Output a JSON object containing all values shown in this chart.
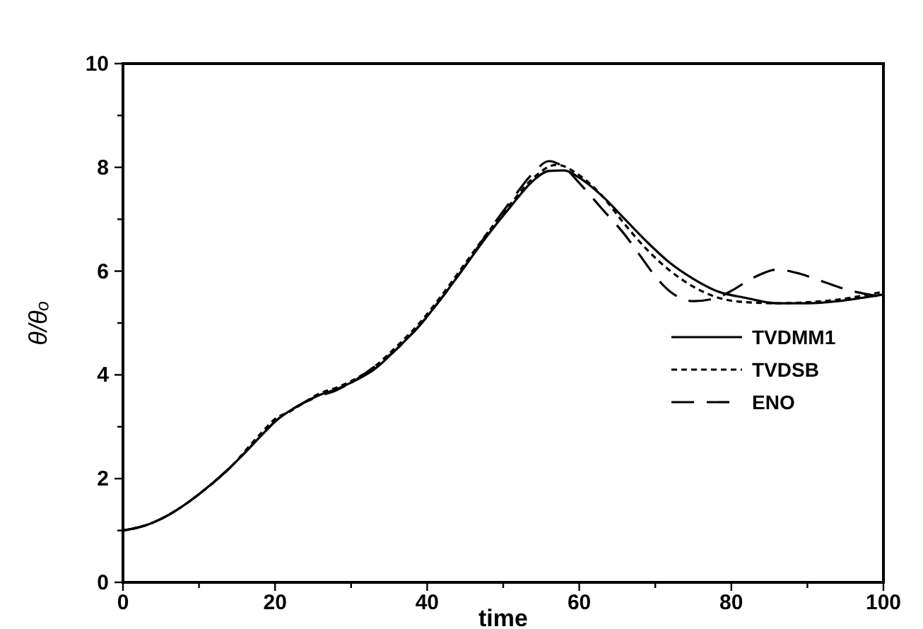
{
  "chart_data": {
    "type": "line",
    "xlabel": "time",
    "ylabel": "θ/θₒ",
    "xlim": [
      0,
      100
    ],
    "xticks": [
      0,
      {
        "value": 10,
        "label": null
      },
      20,
      {
        "value": 30,
        "label": null
      },
      40,
      {
        "value": 50,
        "label": null
      },
      60,
      {
        "value": 70,
        "label": null
      },
      80,
      {
        "value": 90,
        "label": null
      },
      100
    ],
    "ylim": [
      0,
      10
    ],
    "yticks": [
      0,
      {
        "value": 1,
        "label": null
      },
      2,
      {
        "value": 3,
        "label": null
      },
      4,
      {
        "value": 5,
        "label": null
      },
      6,
      {
        "value": 7,
        "label": null
      },
      8,
      {
        "value": 9,
        "label": null
      },
      10
    ],
    "legend": "right",
    "grid": false,
    "marker": "none",
    "series": [
      {
        "name": "TVDMM1",
        "color": "#000000",
        "line_style": "solid",
        "x": [
          0,
          3,
          6,
          10,
          14,
          18,
          20,
          23,
          26,
          28,
          30,
          33,
          36,
          39,
          42,
          45,
          48,
          51,
          54,
          56,
          58,
          60,
          63,
          66,
          69,
          72,
          75,
          78,
          82,
          86,
          90,
          94,
          97,
          100
        ],
        "values": [
          1.0,
          1.1,
          1.3,
          1.7,
          2.2,
          2.8,
          3.1,
          3.4,
          3.62,
          3.72,
          3.85,
          4.1,
          4.5,
          4.95,
          5.5,
          6.1,
          6.7,
          7.25,
          7.75,
          7.93,
          7.94,
          7.8,
          7.45,
          7.0,
          6.55,
          6.15,
          5.85,
          5.62,
          5.48,
          5.38,
          5.38,
          5.42,
          5.48,
          5.55
        ]
      },
      {
        "name": "TVDSB",
        "color": "#000000",
        "line_style": "dotted",
        "x": [
          0,
          3,
          6,
          10,
          14,
          18,
          20,
          22,
          26,
          28,
          30,
          33,
          36,
          39,
          42,
          45,
          48,
          51,
          54,
          57,
          60,
          63,
          66,
          69,
          72,
          75,
          78,
          82,
          86,
          90,
          94,
          97,
          100
        ],
        "values": [
          1.0,
          1.1,
          1.3,
          1.7,
          2.2,
          2.85,
          3.15,
          3.3,
          3.65,
          3.75,
          3.88,
          4.15,
          4.55,
          5.0,
          5.55,
          6.15,
          6.75,
          7.3,
          7.8,
          8.05,
          7.85,
          7.45,
          6.9,
          6.4,
          6.0,
          5.7,
          5.5,
          5.4,
          5.38,
          5.4,
          5.45,
          5.52,
          5.6
        ]
      },
      {
        "name": "ENO",
        "color": "#000000",
        "line_style": "dashed",
        "x": [
          0,
          3,
          6,
          10,
          14,
          18,
          20,
          23,
          26,
          28,
          30,
          33,
          36,
          39,
          42,
          45,
          48,
          51,
          54,
          56,
          58,
          60,
          63,
          66,
          68,
          70,
          72,
          75,
          78,
          80,
          83,
          86,
          89,
          92,
          95,
          98,
          100
        ],
        "values": [
          1.0,
          1.1,
          1.3,
          1.7,
          2.2,
          2.8,
          3.1,
          3.4,
          3.6,
          3.7,
          3.85,
          4.15,
          4.5,
          4.95,
          5.5,
          6.1,
          6.75,
          7.35,
          7.9,
          8.12,
          8.0,
          7.7,
          7.2,
          6.7,
          6.3,
          5.9,
          5.6,
          5.42,
          5.48,
          5.62,
          5.88,
          6.03,
          5.95,
          5.8,
          5.65,
          5.55,
          5.5
        ]
      }
    ]
  }
}
